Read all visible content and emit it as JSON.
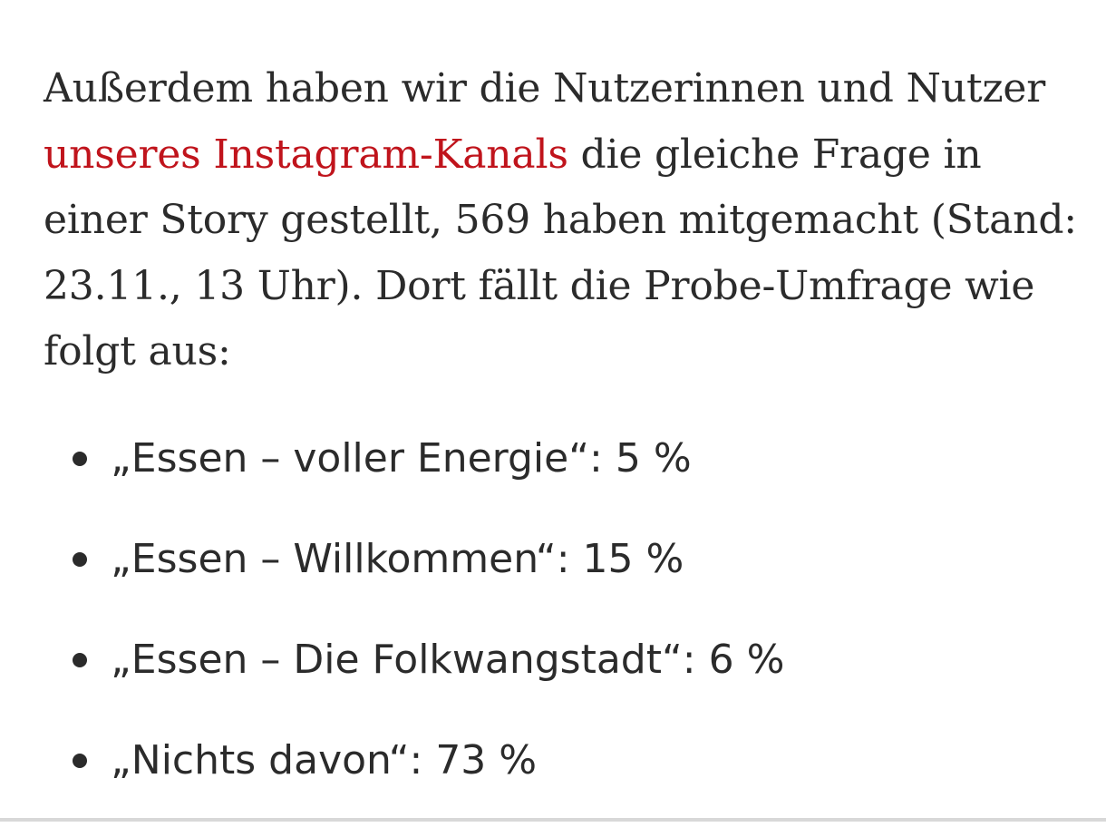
{
  "article": {
    "paragraph": {
      "text_before_link": "Außerdem haben wir die Nutzerinnen und Nutzer ",
      "link_text": "unseres Instagram-Kanals",
      "text_after_link": " die gleiche Frage in einer Story gestellt, 569 haben mitgemacht (Stand: 23.11., 13 Uhr). Dort fällt die Probe-Umfrage wie folgt aus:"
    },
    "results": [
      {
        "text": "„Essen – voller Energie“: 5 %"
      },
      {
        "text": "„Essen – Willkommen“: 15 %"
      },
      {
        "text": "„Essen – Die Folkwangstadt“: 6 %"
      },
      {
        "text": "„Nichts davon“: 73 %"
      }
    ]
  },
  "colors": {
    "text": "#2b2b2b",
    "link": "#c0141c",
    "background": "#ffffff"
  }
}
